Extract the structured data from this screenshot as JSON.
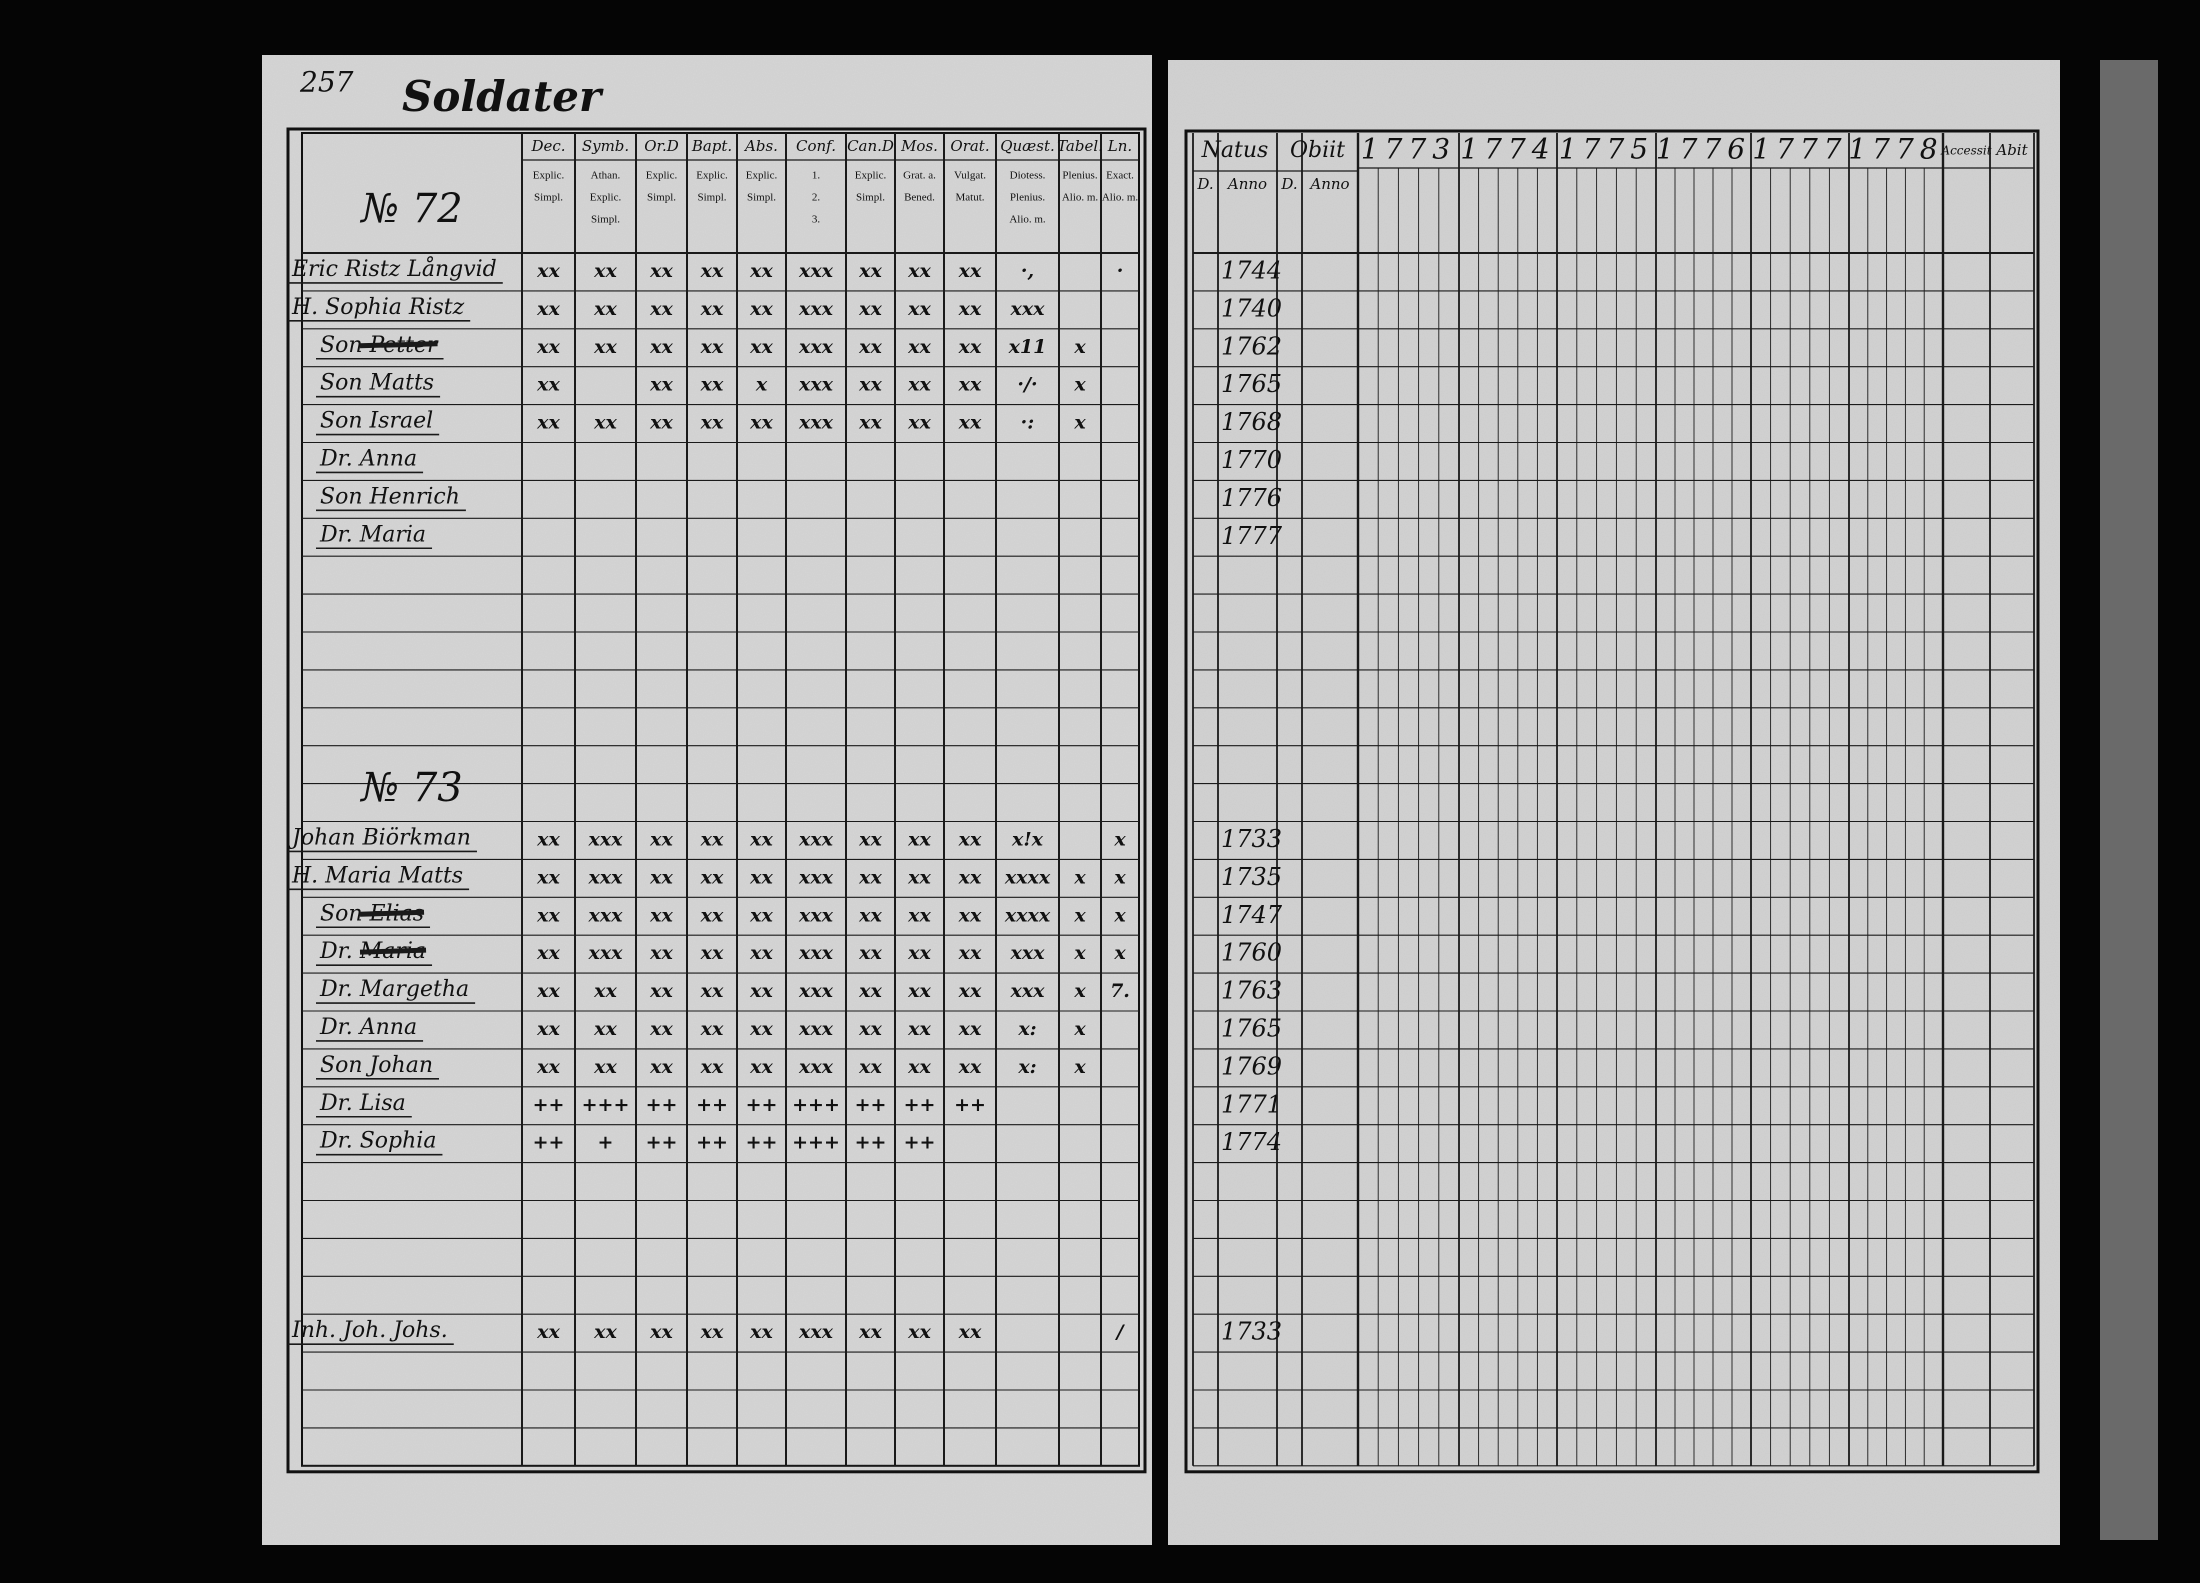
{
  "left_page": {
    "page_number": "257",
    "title": "Soldater",
    "columns": [
      {
        "label": "Dec.",
        "sub": [
          "Explic.",
          "Simpl."
        ]
      },
      {
        "label": "Symb.",
        "sub": [
          "Athan.",
          "Explic.",
          "Simpl."
        ]
      },
      {
        "label": "Or.D",
        "sub": [
          "Explic.",
          "Simpl."
        ]
      },
      {
        "label": "Bapt.",
        "sub": [
          "Explic.",
          "Simpl."
        ]
      },
      {
        "label": "Abs.",
        "sub": [
          "Explic.",
          "Simpl."
        ]
      },
      {
        "label": "Conf.",
        "sub": [
          "1.",
          "2.",
          "3."
        ]
      },
      {
        "label": "Can.D",
        "sub": [
          "Explic.",
          "Simpl."
        ]
      },
      {
        "label": "Mos.",
        "sub": [
          "Grat. a.",
          "Bened."
        ]
      },
      {
        "label": "Orat.",
        "sub": [
          "Vulgat.",
          "Matut."
        ]
      },
      {
        "label": "Quæst.",
        "sub": [
          "Diotess.",
          "Plenius.",
          "Alio. m."
        ]
      },
      {
        "label": "Tabel.",
        "sub": [
          "Plenius.",
          "Alio. m."
        ]
      },
      {
        "label": "Ln.",
        "sub": [
          "Exact.",
          "Alio. m."
        ]
      }
    ],
    "households": [
      {
        "number": "№ 72",
        "members": [
          {
            "name": "Eric Ristz Långvid",
            "born": "1744",
            "marks": [
              "xx",
              "xx",
              "xx",
              "xx",
              "xx",
              "xxx",
              "xx",
              "xx",
              "xx",
              "·,",
              null,
              "·"
            ]
          },
          {
            "name": "H. Sophia Ristz",
            "born": "1740",
            "marks": [
              "xx",
              "xx",
              "xx",
              "xx",
              "xx",
              "xxx",
              "xx",
              "xx",
              "xx",
              "xxx",
              null,
              null
            ]
          },
          {
            "name": "Son Petter",
            "born": "1762",
            "struck": true,
            "marks": [
              "xx",
              "xx",
              "xx",
              "xx",
              "xx",
              "xxx",
              "xx",
              "xx",
              "xx",
              "x11",
              "x",
              null
            ]
          },
          {
            "name": "Son Matts",
            "born": "1765",
            "marks": [
              "xx",
              null,
              "xx",
              "xx",
              "x",
              "xxx",
              "xx",
              "xx",
              "xx",
              "·/·",
              "x",
              null
            ]
          },
          {
            "name": "Son Israel",
            "born": "1768",
            "marks": [
              "xx",
              "xx",
              "xx",
              "xx",
              "xx",
              "xxx",
              "xx",
              "xx",
              "xx",
              "·:",
              "x",
              null
            ]
          },
          {
            "name": "Dr. Anna",
            "born": "1770"
          },
          {
            "name": "Son Henrich",
            "born": "1776"
          },
          {
            "name": "Dr. Maria",
            "born": "1777"
          }
        ]
      },
      {
        "number": "№ 73",
        "members": [
          {
            "name": "Johan Biörkman",
            "born": "1733",
            "marks": [
              "xx",
              "xxx",
              "xx",
              "xx",
              "xx",
              "xxx",
              "xx",
              "xx",
              "xx",
              "x!x",
              null,
              "x"
            ]
          },
          {
            "name": "H. Maria Matts",
            "born": "1735",
            "marks": [
              "xx",
              "xxx",
              "xx",
              "xx",
              "xx",
              "xxx",
              "xx",
              "xx",
              "xx",
              "xxxx",
              "x",
              "x"
            ]
          },
          {
            "name": "Son Elias",
            "born": "1747",
            "struck": true,
            "marks": [
              "xx",
              "xxx",
              "xx",
              "xx",
              "xx",
              "xxx",
              "xx",
              "xx",
              "xx",
              "xxxx",
              "x",
              "x"
            ]
          },
          {
            "name": "Dr. Maria",
            "born": "1760",
            "struck": true,
            "marks": [
              "xx",
              "xxx",
              "xx",
              "xx",
              "xx",
              "xxx",
              "xx",
              "xx",
              "xx",
              "xxx",
              "x",
              "x"
            ]
          },
          {
            "name": "Dr. Margetha",
            "born": "1763",
            "marks": [
              "xx",
              "xx",
              "xx",
              "xx",
              "xx",
              "xxx",
              "xx",
              "xx",
              "xx",
              "xxx",
              "x",
              "7."
            ]
          },
          {
            "name": "Dr. Anna",
            "born": "1765",
            "marks": [
              "xx",
              "xx",
              "xx",
              "xx",
              "xx",
              "xxx",
              "xx",
              "xx",
              "xx",
              "x:",
              "x",
              null
            ]
          },
          {
            "name": "Son Johan",
            "born": "1769",
            "marks": [
              "xx",
              "xx",
              "xx",
              "xx",
              "xx",
              "xxx",
              "xx",
              "xx",
              "xx",
              "x:",
              "x",
              null
            ]
          },
          {
            "name": "Dr. Lisa",
            "born": "1771",
            "marks": [
              "++",
              "+++",
              "++",
              "++",
              "++",
              "+++",
              "++",
              "++",
              "++",
              null,
              null,
              null
            ]
          },
          {
            "name": "Dr. Sophia",
            "born": "1774",
            "marks": [
              "++",
              "+",
              "++",
              "++",
              "++",
              "+++",
              "++",
              "++",
              null,
              null,
              null,
              null
            ]
          }
        ]
      },
      {
        "members": [
          {
            "name": "Inh. Joh. Johs.",
            "born": "1733",
            "marks": [
              "xx",
              "xx",
              "xx",
              "xx",
              "xx",
              "xxx",
              "xx",
              "xx",
              "xx",
              null,
              null,
              "/"
            ]
          }
        ]
      }
    ]
  },
  "right_page": {
    "natus": {
      "label": "Natus",
      "sub": [
        "D.",
        "Anno"
      ]
    },
    "obiit": {
      "label": "Obiit",
      "sub": [
        "D.",
        "Anno"
      ]
    },
    "years": [
      "1773",
      "1774",
      "1775",
      "1776",
      "1777",
      "1778"
    ],
    "accessit": "Accessit",
    "abit": "Abit"
  }
}
